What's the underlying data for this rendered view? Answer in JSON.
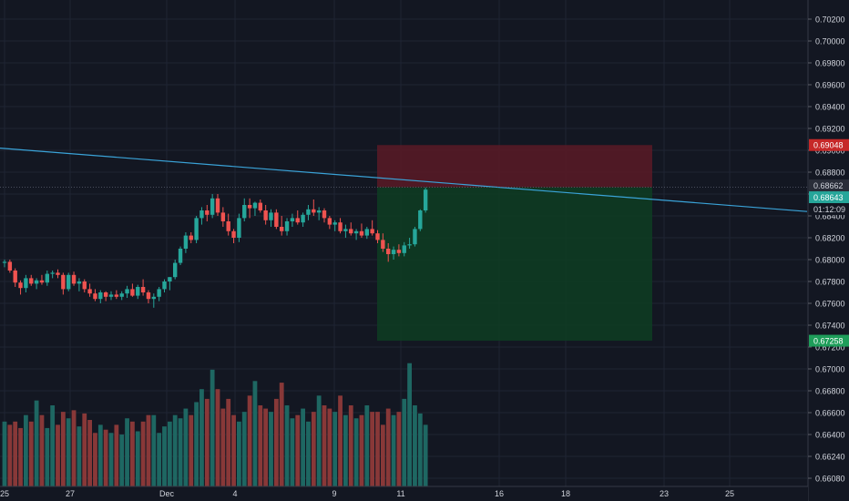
{
  "chart_data": {
    "type": "candlestick",
    "title": "",
    "price_axis": {
      "ticks": [
        "0.70200",
        "0.70000",
        "0.69800",
        "0.69600",
        "0.69400",
        "0.69200",
        "0.69000",
        "0.68800",
        "0.68600",
        "0.68400",
        "0.68200",
        "0.68000",
        "0.67800",
        "0.67600",
        "0.67400",
        "0.67200",
        "0.67000",
        "0.66800",
        "0.66600",
        "0.66400",
        "0.66240",
        "0.66080"
      ]
    },
    "time_axis": {
      "ticks": [
        "25",
        "27",
        "Dec",
        "4",
        "9",
        "11",
        "16",
        "18",
        "23",
        "25"
      ]
    },
    "badges": {
      "stop_price": "0.69048",
      "entry_price": "0.68662",
      "last_price": "0.68643",
      "countdown": "01:12:09",
      "target_price": "0.67258"
    },
    "position": {
      "stop": 0.69048,
      "entry": 0.68662,
      "target": 0.67258
    },
    "trendline": {
      "start": 0.6902,
      "end": 0.6844
    },
    "colors": {
      "background": "#131722",
      "grid": "#1f2433",
      "up": "#26a69a",
      "down": "#ef5350",
      "trendline": "#3aa3d8",
      "stop_zone": "#5a1a26",
      "target_zone": "#0e3d22",
      "stop_badge": "#c62828",
      "last_badge": "#26a69a",
      "target_badge": "#1e9e5a"
    },
    "candles": [
      [
        0.6797,
        0.68,
        0.6793,
        0.6798
      ],
      [
        0.6798,
        0.68,
        0.6788,
        0.679
      ],
      [
        0.679,
        0.6792,
        0.6775,
        0.6779
      ],
      [
        0.6779,
        0.6781,
        0.6768,
        0.6774
      ],
      [
        0.6774,
        0.6786,
        0.677,
        0.6783
      ],
      [
        0.6783,
        0.6786,
        0.6776,
        0.6778
      ],
      [
        0.6778,
        0.6783,
        0.6773,
        0.6781
      ],
      [
        0.6781,
        0.6786,
        0.6777,
        0.6779
      ],
      [
        0.6779,
        0.679,
        0.6776,
        0.6787
      ],
      [
        0.6787,
        0.679,
        0.6783,
        0.6788
      ],
      [
        0.6788,
        0.6791,
        0.6783,
        0.6786
      ],
      [
        0.6786,
        0.6788,
        0.6768,
        0.6773
      ],
      [
        0.6773,
        0.6788,
        0.6771,
        0.6786
      ],
      [
        0.6786,
        0.6789,
        0.6776,
        0.6778
      ],
      [
        0.6778,
        0.6783,
        0.6771,
        0.678
      ],
      [
        0.678,
        0.6782,
        0.677,
        0.6773
      ],
      [
        0.6773,
        0.6778,
        0.6766,
        0.6769
      ],
      [
        0.6769,
        0.6773,
        0.6762,
        0.6764
      ],
      [
        0.6764,
        0.6772,
        0.676,
        0.677
      ],
      [
        0.677,
        0.6771,
        0.6762,
        0.6766
      ],
      [
        0.6766,
        0.6771,
        0.6763,
        0.6768
      ],
      [
        0.6768,
        0.6772,
        0.6764,
        0.6766
      ],
      [
        0.6766,
        0.6771,
        0.6763,
        0.6769
      ],
      [
        0.6769,
        0.6776,
        0.6765,
        0.6773
      ],
      [
        0.6773,
        0.6778,
        0.6766,
        0.6767
      ],
      [
        0.6767,
        0.6777,
        0.6764,
        0.6775
      ],
      [
        0.6775,
        0.6782,
        0.6767,
        0.677
      ],
      [
        0.677,
        0.6772,
        0.676,
        0.6764
      ],
      [
        0.6764,
        0.6769,
        0.6756,
        0.6766
      ],
      [
        0.6766,
        0.6775,
        0.6762,
        0.6773
      ],
      [
        0.6773,
        0.6782,
        0.677,
        0.678
      ],
      [
        0.678,
        0.6784,
        0.6772,
        0.6784
      ],
      [
        0.6784,
        0.68,
        0.6782,
        0.6797
      ],
      [
        0.6797,
        0.6812,
        0.6795,
        0.681
      ],
      [
        0.681,
        0.6825,
        0.6806,
        0.6822
      ],
      [
        0.6822,
        0.6825,
        0.6815,
        0.6818
      ],
      [
        0.6818,
        0.684,
        0.6815,
        0.6838
      ],
      [
        0.6838,
        0.6848,
        0.6832,
        0.6845
      ],
      [
        0.6845,
        0.685,
        0.6835,
        0.6841
      ],
      [
        0.6841,
        0.686,
        0.6838,
        0.6856
      ],
      [
        0.6856,
        0.686,
        0.684,
        0.6843
      ],
      [
        0.6843,
        0.6848,
        0.683,
        0.6835
      ],
      [
        0.6835,
        0.6842,
        0.6822,
        0.6826
      ],
      [
        0.6826,
        0.6828,
        0.6815,
        0.682
      ],
      [
        0.682,
        0.6842,
        0.6816,
        0.6838
      ],
      [
        0.6838,
        0.6856,
        0.6835,
        0.685
      ],
      [
        0.685,
        0.6856,
        0.6838,
        0.6847
      ],
      [
        0.6847,
        0.6853,
        0.684,
        0.6852
      ],
      [
        0.6852,
        0.6855,
        0.6843,
        0.6845
      ],
      [
        0.6845,
        0.685,
        0.6832,
        0.6836
      ],
      [
        0.6836,
        0.6846,
        0.683,
        0.6843
      ],
      [
        0.6843,
        0.6846,
        0.6828,
        0.683
      ],
      [
        0.683,
        0.684,
        0.6822,
        0.6826
      ],
      [
        0.6826,
        0.6838,
        0.6822,
        0.6835
      ],
      [
        0.6835,
        0.6842,
        0.683,
        0.6838
      ],
      [
        0.6838,
        0.6845,
        0.6832,
        0.6834
      ],
      [
        0.6834,
        0.6843,
        0.683,
        0.6841
      ],
      [
        0.6841,
        0.685,
        0.6836,
        0.6846
      ],
      [
        0.6846,
        0.6855,
        0.684,
        0.6843
      ],
      [
        0.6843,
        0.6848,
        0.6836,
        0.6845
      ],
      [
        0.6845,
        0.6847,
        0.6834,
        0.6838
      ],
      [
        0.6838,
        0.684,
        0.6828,
        0.6832
      ],
      [
        0.6832,
        0.6836,
        0.6826,
        0.6834
      ],
      [
        0.6834,
        0.6838,
        0.6824,
        0.6826
      ],
      [
        0.6826,
        0.6832,
        0.682,
        0.6828
      ],
      [
        0.6828,
        0.6834,
        0.6822,
        0.6824
      ],
      [
        0.6824,
        0.6828,
        0.6818,
        0.6826
      ],
      [
        0.6826,
        0.6833,
        0.682,
        0.6822
      ],
      [
        0.6822,
        0.683,
        0.6819,
        0.6828
      ],
      [
        0.6828,
        0.6836,
        0.6822,
        0.6824
      ],
      [
        0.6824,
        0.6827,
        0.6815,
        0.6818
      ],
      [
        0.6818,
        0.6824,
        0.6807,
        0.681
      ],
      [
        0.681,
        0.6815,
        0.6798,
        0.6805
      ],
      [
        0.6805,
        0.6812,
        0.68,
        0.6809
      ],
      [
        0.6809,
        0.6814,
        0.6803,
        0.6806
      ],
      [
        0.6806,
        0.6816,
        0.6803,
        0.6813
      ],
      [
        0.6813,
        0.682,
        0.681,
        0.6814
      ],
      [
        0.6814,
        0.683,
        0.6812,
        0.6828
      ],
      [
        0.6828,
        0.6846,
        0.6826,
        0.6845
      ],
      [
        0.6845,
        0.6866,
        0.6843,
        0.6864
      ]
    ],
    "volumes": [
      40,
      38,
      40,
      36,
      44,
      40,
      53,
      44,
      36,
      50,
      38,
      46,
      42,
      47,
      37,
      45,
      41,
      33,
      38,
      35,
      33,
      38,
      32,
      42,
      40,
      34,
      40,
      44,
      44,
      33,
      37,
      40,
      44,
      42,
      48,
      44,
      52,
      60,
      54,
      72,
      60,
      48,
      54,
      44,
      40,
      46,
      56,
      65,
      50,
      48,
      46,
      54,
      64,
      50,
      42,
      44,
      48,
      40,
      46,
      56,
      50,
      48,
      46,
      56,
      44,
      50,
      42,
      44,
      50,
      46,
      46,
      38,
      48,
      44,
      46,
      54,
      76,
      50,
      45,
      38
    ],
    "volume_up": [
      1,
      0,
      0,
      0,
      1,
      0,
      1,
      0,
      1,
      1,
      0,
      0,
      1,
      0,
      1,
      0,
      0,
      0,
      1,
      0,
      1,
      0,
      1,
      1,
      0,
      1,
      0,
      0,
      1,
      1,
      1,
      1,
      1,
      1,
      1,
      0,
      1,
      1,
      0,
      1,
      0,
      0,
      0,
      0,
      1,
      1,
      0,
      1,
      0,
      0,
      1,
      0,
      0,
      1,
      1,
      0,
      1,
      1,
      0,
      1,
      0,
      0,
      1,
      0,
      1,
      0,
      1,
      0,
      1,
      0,
      0,
      0,
      0,
      1,
      0,
      1,
      1,
      1,
      1,
      1
    ]
  }
}
